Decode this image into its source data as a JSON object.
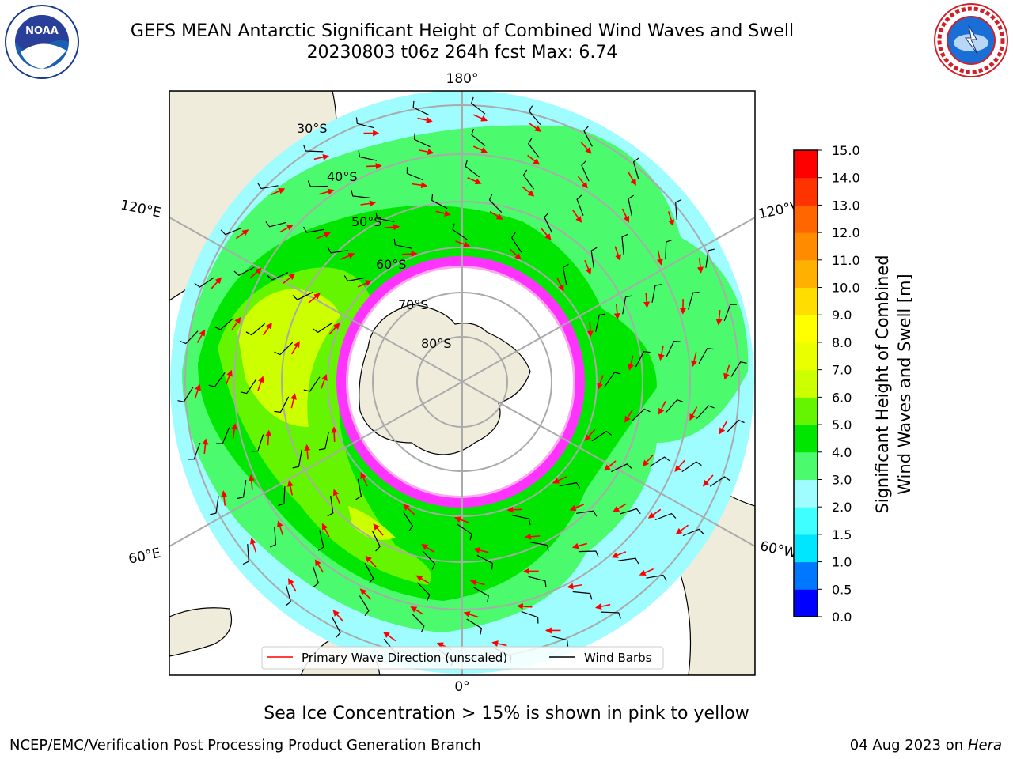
{
  "title": {
    "line1": "GEFS MEAN Antarctic Significant Height of Combined Wind Waves and Swell",
    "line2": "20230803 t06z 264h fcst   Max: 6.74"
  },
  "logos": {
    "left": "NOAA",
    "right": "NATIONAL WEATHER SERVICE"
  },
  "map": {
    "projection": "south-polar-stereographic",
    "meridian_labels": {
      "top": "180°",
      "bottom": "0°",
      "upper_left": "120°E",
      "lower_left": "60°E",
      "upper_right": "120°W",
      "lower_right": "60°W"
    },
    "latitude_labels": [
      "30°S",
      "40°S",
      "50°S",
      "60°S",
      "70°S",
      "80°S"
    ],
    "colors": {
      "land": "#efecdc",
      "ice_free_ocean_low": "#9ffcff",
      "band_3_4": "#4cfa6e",
      "band_4_5": "#00e600",
      "band_5_6": "#66f500",
      "band_6_7": "#ccff00",
      "sea_ice_edge": "#ff33ff",
      "wave_arrow": "#ff0000",
      "wind_barb": "#000000"
    }
  },
  "legend": {
    "wave": "Primary Wave Direction (unscaled)",
    "wind": "Wind Barbs"
  },
  "colorbar": {
    "label_line1": "Significant Height of Combined",
    "label_line2": "Wind Waves and Swell [m]",
    "ticks": [
      "0.0",
      "0.5",
      "1.0",
      "1.5",
      "2.0",
      "3.0",
      "4.0",
      "5.0",
      "6.0",
      "7.0",
      "8.0",
      "9.0",
      "10.0",
      "11.0",
      "12.0",
      "13.0",
      "14.0",
      "15.0"
    ],
    "colors": [
      "#0000ff",
      "#0077ff",
      "#00e6ff",
      "#40ffff",
      "#9ffcff",
      "#4cfa6e",
      "#00e600",
      "#66f500",
      "#ccff00",
      "#eaff00",
      "#ffff00",
      "#ffdd00",
      "#ffb000",
      "#ff8c00",
      "#ff6600",
      "#ff3300",
      "#ff0000"
    ]
  },
  "caption": "Sea Ice Concentration > 15% is shown in pink to yellow",
  "footer": {
    "left": "NCEP/EMC/Verification Post Processing Product Generation Branch",
    "right_date": "04 Aug 2023 on",
    "right_host": "Hera"
  }
}
